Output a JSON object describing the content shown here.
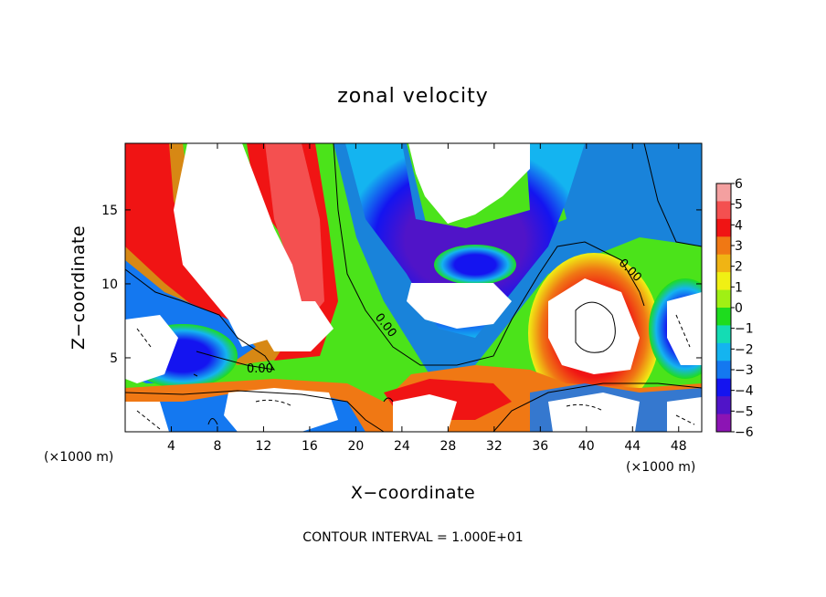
{
  "chart_data": {
    "type": "heatmap",
    "title": "zonal velocity",
    "xlabel": "X−coordinate",
    "ylabel": "Z−coordinate",
    "x_unit_left": "(×1000 m)",
    "x_unit_right": "(×1000 m)",
    "xlim": [
      0,
      50
    ],
    "ylim": [
      0,
      19.5
    ],
    "x_ticks": [
      4,
      8,
      12,
      16,
      20,
      24,
      28,
      32,
      36,
      40,
      44,
      48
    ],
    "x_tick_labels": [
      "4",
      "8",
      "12",
      "16",
      "20",
      "24",
      "28",
      "32",
      "36",
      "40",
      "44",
      "48"
    ],
    "y_ticks": [
      5,
      10,
      15
    ],
    "y_tick_labels": [
      "5",
      "10",
      "15"
    ],
    "colorbar": {
      "levels": [
        6,
        5,
        4,
        3,
        2,
        1,
        0,
        -1,
        -2,
        -3,
        -4,
        -5,
        -6
      ],
      "labels": [
        "6",
        "5",
        "4",
        "3",
        "2",
        "1",
        "0",
        "−1",
        "−2",
        "−3",
        "−4",
        "−5",
        "−6"
      ],
      "colors": [
        "#f4a0a0",
        "#f45050",
        "#f01414",
        "#f07814",
        "#f0b414",
        "#f0f014",
        "#a0f014",
        "#1edc1e",
        "#14dcb4",
        "#14b4f0",
        "#1478f0",
        "#1414f0",
        "#5014c8",
        "#8c14b4"
      ]
    },
    "contour_interval_text": "CONTOUR INTERVAL = 1.000E+01",
    "contour_labels": [
      "0.00",
      "0.00",
      "0.00"
    ],
    "grid": false
  }
}
